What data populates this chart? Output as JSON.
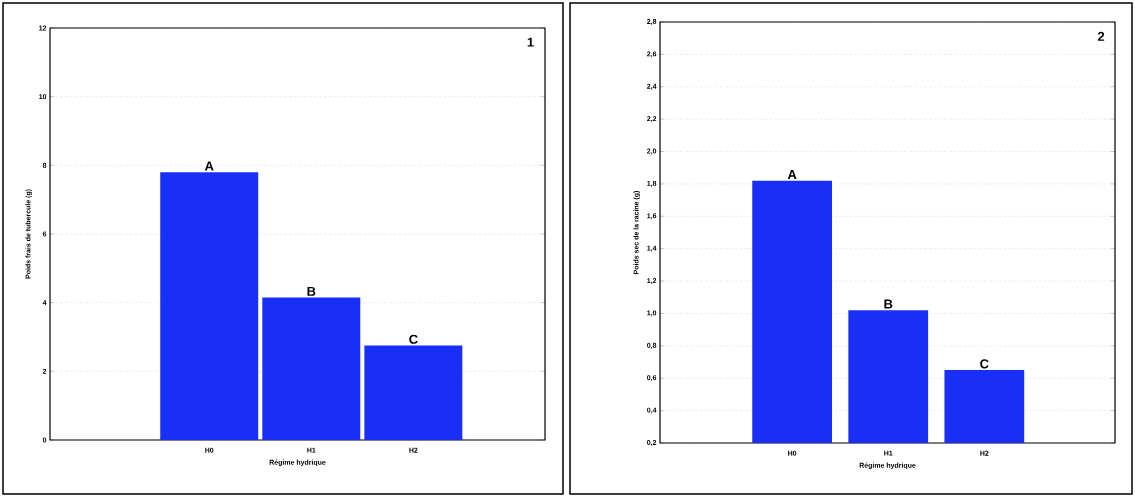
{
  "chart_data": [
    {
      "type": "bar",
      "xlabel": "Régime hydrique",
      "ylabel": "Poids frais de tubercule (g)",
      "categories": [
        "H0",
        "H1",
        "H2"
      ],
      "values": [
        7.8,
        4.15,
        2.75
      ],
      "value_labels": [
        "A",
        "B",
        "C"
      ],
      "color": "#1a2ff5",
      "ylim": [
        0,
        12
      ],
      "yticks": [
        0,
        2,
        4,
        6,
        8,
        10,
        12
      ],
      "grid": "y",
      "annotations": [
        "1"
      ]
    },
    {
      "type": "bar",
      "xlabel": "Régime hydrique",
      "ylabel": "Poids sec de la racine (g)",
      "categories": [
        "H0",
        "H1",
        "H2"
      ],
      "values": [
        1.82,
        1.02,
        0.65
      ],
      "value_labels": [
        "A",
        "B",
        "C"
      ],
      "color": "#1a2ff5",
      "ylim": [
        0.2,
        2.8
      ],
      "yticks": [
        {
          "value": 0.2,
          "label": "0,2"
        },
        {
          "value": 0.4,
          "label": "0,4"
        },
        {
          "value": 0.6,
          "label": "0,6"
        },
        {
          "value": 0.8,
          "label": "0,8"
        },
        {
          "value": 1.0,
          "label": "1,0"
        },
        {
          "value": 1.2,
          "label": "1,2"
        },
        {
          "value": 1.4,
          "label": "1,4"
        },
        {
          "value": 1.6,
          "label": "1,6"
        },
        {
          "value": 1.8,
          "label": "1,8"
        },
        {
          "value": 2.0,
          "label": "2,0"
        },
        {
          "value": 2.2,
          "label": "2,2"
        },
        {
          "value": 2.4,
          "label": "2,4"
        },
        {
          "value": 2.6,
          "label": "2,6"
        },
        {
          "value": 2.8,
          "label": "2,8"
        }
      ],
      "grid": "y",
      "annotations": [
        "2"
      ]
    }
  ]
}
